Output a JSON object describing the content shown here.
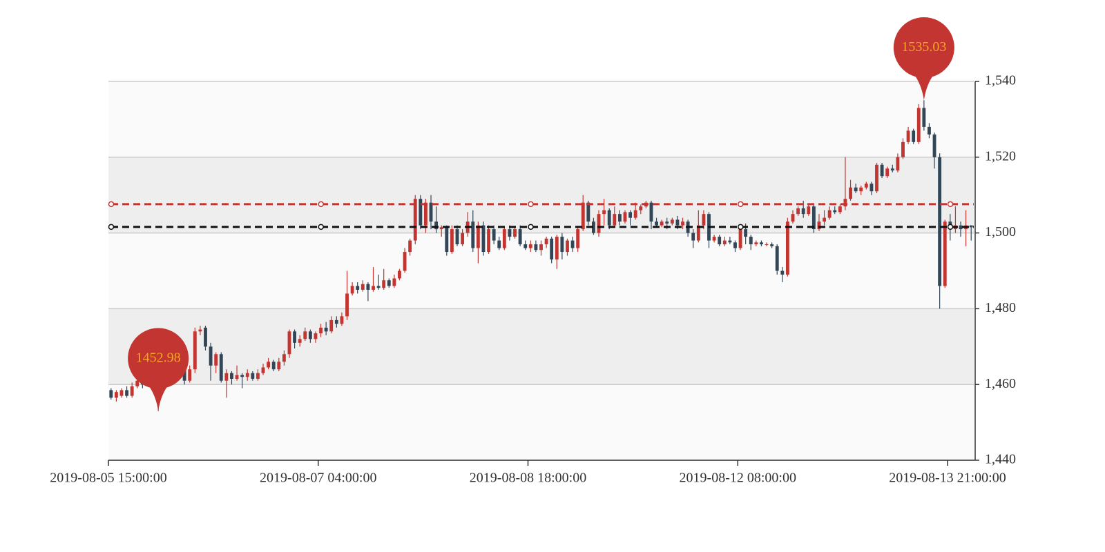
{
  "chart_data": {
    "type": "candlestick",
    "categories": [
      "2019-08-05 15:00:00",
      null,
      null,
      null,
      null,
      null,
      null,
      null,
      null,
      null,
      null,
      null,
      null,
      null,
      null,
      null,
      null,
      null,
      null,
      null,
      null,
      null,
      null,
      null,
      null,
      null,
      null,
      null,
      null,
      null,
      null,
      null,
      null,
      null,
      null,
      null,
      null,
      null,
      null,
      null,
      "2019-08-07 04:00:00",
      null,
      null,
      null,
      null,
      null,
      null,
      null,
      null,
      null,
      null,
      null,
      null,
      null,
      null,
      null,
      null,
      null,
      null,
      null,
      null,
      null,
      null,
      null,
      null,
      null,
      null,
      null,
      null,
      null,
      null,
      null,
      null,
      null,
      null,
      null,
      null,
      null,
      null,
      null,
      "2019-08-08 18:00:00",
      null,
      null,
      null,
      null,
      null,
      null,
      null,
      null,
      null,
      null,
      null,
      null,
      null,
      null,
      null,
      null,
      null,
      null,
      null,
      null,
      null,
      null,
      null,
      null,
      null,
      null,
      null,
      null,
      null,
      null,
      null,
      null,
      null,
      null,
      null,
      null,
      null,
      null,
      null,
      "2019-08-12 08:00:00",
      null,
      null,
      null,
      null,
      null,
      null,
      null,
      null,
      null,
      null,
      null,
      null,
      null,
      null,
      null,
      null,
      null,
      null,
      null,
      null,
      null,
      null,
      null,
      null,
      null,
      null,
      null,
      null,
      null,
      null,
      null,
      null,
      null,
      null,
      null,
      null,
      null,
      null,
      null,
      "2019-08-13 21:00:00",
      null,
      null,
      null,
      null
    ],
    "values": [
      [
        1458.5,
        1456.5,
        1456,
        1459
      ],
      [
        1456.5,
        1458,
        1455.5,
        1458.5
      ],
      [
        1457,
        1458.5,
        1456.5,
        1459
      ],
      [
        1458.5,
        1457,
        1456.5,
        1459.5
      ],
      [
        1457,
        1459.5,
        1456.5,
        1460.5
      ],
      [
        1459.5,
        1461,
        1459,
        1462.5
      ],
      [
        1461,
        1460,
        1459,
        1462
      ],
      [
        1460,
        1462.5,
        1459.5,
        1463
      ],
      [
        1462.5,
        1461.5,
        1460.5,
        1463.5
      ],
      [
        1461.5,
        1463,
        1452.98,
        1464
      ],
      [
        1463,
        1465,
        1462,
        1466
      ],
      [
        1465,
        1464,
        1463,
        1466
      ],
      [
        1464,
        1466.5,
        1463.5,
        1467
      ],
      [
        1466.5,
        1465,
        1462,
        1467
      ],
      [
        1465,
        1461,
        1460,
        1466
      ],
      [
        1461,
        1464,
        1460.5,
        1465
      ],
      [
        1464,
        1474,
        1463,
        1475
      ],
      [
        1474,
        1474.5,
        1473,
        1475.5
      ],
      [
        1475,
        1470,
        1469,
        1475.5
      ],
      [
        1470,
        1465,
        1461,
        1471
      ],
      [
        1465,
        1468,
        1463,
        1468.5
      ],
      [
        1468,
        1461,
        1460.5,
        1468.5
      ],
      [
        1461,
        1463,
        1456.5,
        1464
      ],
      [
        1463,
        1461.5,
        1460,
        1463.5
      ],
      [
        1461.5,
        1462.5,
        1461,
        1465
      ],
      [
        1462.5,
        1462,
        1459,
        1463
      ],
      [
        1462,
        1463,
        1461,
        1464
      ],
      [
        1463,
        1461.5,
        1461,
        1463.5
      ],
      [
        1461.5,
        1463,
        1461,
        1464
      ],
      [
        1463,
        1464.5,
        1462.5,
        1465.5
      ],
      [
        1464.5,
        1466,
        1464,
        1467
      ],
      [
        1466,
        1464,
        1463.5,
        1466.5
      ],
      [
        1464,
        1466,
        1463.5,
        1467
      ],
      [
        1466,
        1468,
        1465,
        1469
      ],
      [
        1468,
        1474,
        1467,
        1474.5
      ],
      [
        1474,
        1471,
        1469.5,
        1474.5
      ],
      [
        1471,
        1472,
        1470,
        1473
      ],
      [
        1472,
        1474,
        1471.5,
        1475
      ],
      [
        1474,
        1472,
        1471,
        1474.5
      ],
      [
        1472,
        1473.5,
        1471,
        1474
      ],
      [
        1473.5,
        1475,
        1472.5,
        1476
      ],
      [
        1475,
        1474,
        1473,
        1476.5
      ],
      [
        1474,
        1477,
        1473.5,
        1478
      ],
      [
        1477,
        1476,
        1475,
        1478
      ],
      [
        1476,
        1478,
        1475.5,
        1479
      ],
      [
        1478,
        1484,
        1477,
        1490
      ],
      [
        1484,
        1486,
        1483.5,
        1487
      ],
      [
        1486,
        1485,
        1484,
        1487
      ],
      [
        1485,
        1486.5,
        1484.5,
        1487.5
      ],
      [
        1486.5,
        1485,
        1482,
        1487
      ],
      [
        1485,
        1486,
        1484.5,
        1491
      ],
      [
        1486,
        1485.5,
        1485,
        1489
      ],
      [
        1485.5,
        1487.5,
        1485,
        1490.5
      ],
      [
        1487.5,
        1486,
        1485.5,
        1488
      ],
      [
        1486,
        1488,
        1485.5,
        1489
      ],
      [
        1488,
        1490,
        1487.5,
        1490.5
      ],
      [
        1490,
        1495,
        1489.5,
        1496
      ],
      [
        1495,
        1498,
        1494,
        1498.5
      ],
      [
        1498,
        1509,
        1497,
        1510
      ],
      [
        1509,
        1502,
        1501,
        1510
      ],
      [
        1502,
        1508,
        1500,
        1509
      ],
      [
        1508,
        1503,
        1501,
        1510
      ],
      [
        1503,
        1501,
        1500,
        1507
      ],
      [
        1501,
        1501.5,
        1499,
        1502
      ],
      [
        1501.5,
        1495,
        1494,
        1502
      ],
      [
        1495,
        1501,
        1494.5,
        1502
      ],
      [
        1501,
        1497,
        1496.5,
        1502
      ],
      [
        1497,
        1500,
        1496.5,
        1501
      ],
      [
        1500,
        1503,
        1499,
        1505.5
      ],
      [
        1503,
        1496,
        1495,
        1506
      ],
      [
        1496,
        1502,
        1492,
        1503
      ],
      [
        1502,
        1495,
        1494,
        1503
      ],
      [
        1495,
        1501,
        1494.5,
        1502
      ],
      [
        1501,
        1498,
        1497,
        1502
      ],
      [
        1498,
        1496,
        1495.5,
        1499
      ],
      [
        1496,
        1501,
        1495.5,
        1501.5
      ],
      [
        1501,
        1499,
        1498,
        1502
      ],
      [
        1499,
        1501,
        1498.5,
        1501.5
      ],
      [
        1501,
        1497,
        1496.5,
        1502
      ],
      [
        1497,
        1496,
        1495.5,
        1498
      ],
      [
        1496,
        1497,
        1495,
        1498
      ],
      [
        1497,
        1495.5,
        1495,
        1498
      ],
      [
        1495.5,
        1497,
        1494,
        1498
      ],
      [
        1497,
        1498.5,
        1496,
        1499
      ],
      [
        1498.5,
        1493,
        1492,
        1499
      ],
      [
        1493,
        1499,
        1490.5,
        1499.5
      ],
      [
        1499,
        1495,
        1493,
        1500
      ],
      [
        1495,
        1498,
        1494,
        1498.5
      ],
      [
        1498,
        1496,
        1495,
        1499
      ],
      [
        1496,
        1501,
        1495,
        1501.5
      ],
      [
        1501,
        1508,
        1500.5,
        1510
      ],
      [
        1508,
        1503,
        1502,
        1508.5
      ],
      [
        1503,
        1500,
        1499.5,
        1504
      ],
      [
        1500,
        1505,
        1499,
        1506
      ],
      [
        1505,
        1506,
        1502,
        1509
      ],
      [
        1506,
        1502,
        1501,
        1506.5
      ],
      [
        1502,
        1505,
        1501.5,
        1507
      ],
      [
        1505,
        1503,
        1502,
        1506
      ],
      [
        1503,
        1505.5,
        1502.5,
        1506
      ],
      [
        1505.5,
        1504,
        1502,
        1506
      ],
      [
        1504,
        1506,
        1503.5,
        1508
      ],
      [
        1506,
        1507,
        1505,
        1507.5
      ],
      [
        1507,
        1508,
        1506.5,
        1508.5
      ],
      [
        1508,
        1503,
        1501,
        1508.5
      ],
      [
        1503,
        1502,
        1501.5,
        1504
      ],
      [
        1502,
        1503,
        1501.5,
        1503.5
      ],
      [
        1503,
        1502.5,
        1501,
        1504
      ],
      [
        1502.5,
        1503.5,
        1502,
        1504
      ],
      [
        1503.5,
        1502,
        1501,
        1504.5
      ],
      [
        1502,
        1503,
        1501,
        1504
      ],
      [
        1503,
        1500,
        1499,
        1503.5
      ],
      [
        1500,
        1498,
        1496,
        1501
      ],
      [
        1498,
        1502,
        1497.5,
        1506
      ],
      [
        1502,
        1505,
        1501,
        1506
      ],
      [
        1505,
        1498,
        1496,
        1505.5
      ],
      [
        1498,
        1499,
        1497.5,
        1499.5
      ],
      [
        1499,
        1497,
        1496.5,
        1499.5
      ],
      [
        1497,
        1498,
        1496.5,
        1499
      ],
      [
        1498,
        1497.5,
        1497,
        1499
      ],
      [
        1497.5,
        1496,
        1495,
        1498
      ],
      [
        1496,
        1501,
        1495.5,
        1501.5
      ],
      [
        1501,
        1499,
        1497,
        1502.5
      ],
      [
        1499,
        1497,
        1495.5,
        1499.5
      ],
      [
        1497,
        1497.5,
        1496.5,
        1498
      ],
      [
        1497.5,
        1497,
        1496.5,
        1498
      ],
      [
        1497,
        1497,
        1496.5,
        1497.5
      ],
      [
        1497,
        1496.5,
        1496,
        1497.5
      ],
      [
        1496.5,
        1490,
        1489,
        1497
      ],
      [
        1490,
        1489,
        1487,
        1491
      ],
      [
        1489,
        1503,
        1488.5,
        1504
      ],
      [
        1503,
        1505,
        1502.5,
        1506
      ],
      [
        1505,
        1506.5,
        1504.5,
        1507
      ],
      [
        1506.5,
        1505,
        1504,
        1508.5
      ],
      [
        1505,
        1507,
        1504.5,
        1507.5
      ],
      [
        1507,
        1501,
        1500,
        1507.5
      ],
      [
        1501,
        1503,
        1500.5,
        1505
      ],
      [
        1503,
        1504,
        1502,
        1506
      ],
      [
        1504,
        1506,
        1503.5,
        1507
      ],
      [
        1506,
        1505.5,
        1505,
        1507
      ],
      [
        1505.5,
        1507,
        1505,
        1507.5
      ],
      [
        1507,
        1509,
        1506,
        1520
      ],
      [
        1509,
        1512,
        1508.5,
        1514
      ],
      [
        1512,
        1511,
        1510.5,
        1513
      ],
      [
        1511,
        1512,
        1510,
        1512.5
      ],
      [
        1512,
        1513,
        1511.5,
        1513.5
      ],
      [
        1513,
        1511,
        1510,
        1513.5
      ],
      [
        1511,
        1518,
        1510.5,
        1518.5
      ],
      [
        1518,
        1515,
        1514.5,
        1518.5
      ],
      [
        1515,
        1517,
        1514.5,
        1517.5
      ],
      [
        1517,
        1516.5,
        1516,
        1518
      ],
      [
        1516.5,
        1520,
        1516,
        1521
      ],
      [
        1520,
        1524,
        1519.5,
        1525
      ],
      [
        1524,
        1527,
        1523.5,
        1528
      ],
      [
        1527,
        1524,
        1523.5,
        1527.5
      ],
      [
        1524,
        1533,
        1523.5,
        1534
      ],
      [
        1533,
        1528,
        1527,
        1535.03
      ],
      [
        1528,
        1526,
        1525,
        1529
      ],
      [
        1526,
        1520,
        1517,
        1526.5
      ],
      [
        1520,
        1486,
        1480,
        1521
      ],
      [
        1486,
        1503,
        1485.5,
        1503.5
      ],
      [
        1503,
        1501,
        1498,
        1505
      ],
      [
        1501,
        1502,
        1500,
        1507
      ],
      [
        1502,
        1501,
        1499,
        1503
      ],
      [
        1501,
        1502,
        1496.5,
        1506
      ],
      [
        1502,
        1501.5,
        1498,
        1502
      ]
    ],
    "up_color": "#c23531",
    "down_color": "#314656",
    "ylim": [
      1440,
      1540
    ],
    "yticks": [
      {
        "value": 1440,
        "label": "1,440"
      },
      {
        "value": 1460,
        "label": "1,460"
      },
      {
        "value": 1480,
        "label": "1,480"
      },
      {
        "value": 1500,
        "label": "1,500"
      },
      {
        "value": 1520,
        "label": "1,520"
      },
      {
        "value": 1540,
        "label": "1,540"
      }
    ],
    "grid": true,
    "split_area": true,
    "mark_points": [
      {
        "type": "max",
        "value": 1535.03
      },
      {
        "type": "min",
        "value": 1452.98
      }
    ],
    "mark_point_color": "#c23531",
    "mark_label_color": "#f5a623",
    "mark_lines": [
      {
        "value": 1507.6,
        "color": "#c23531"
      },
      {
        "value": 1501.6,
        "color": "#111111"
      }
    ]
  }
}
